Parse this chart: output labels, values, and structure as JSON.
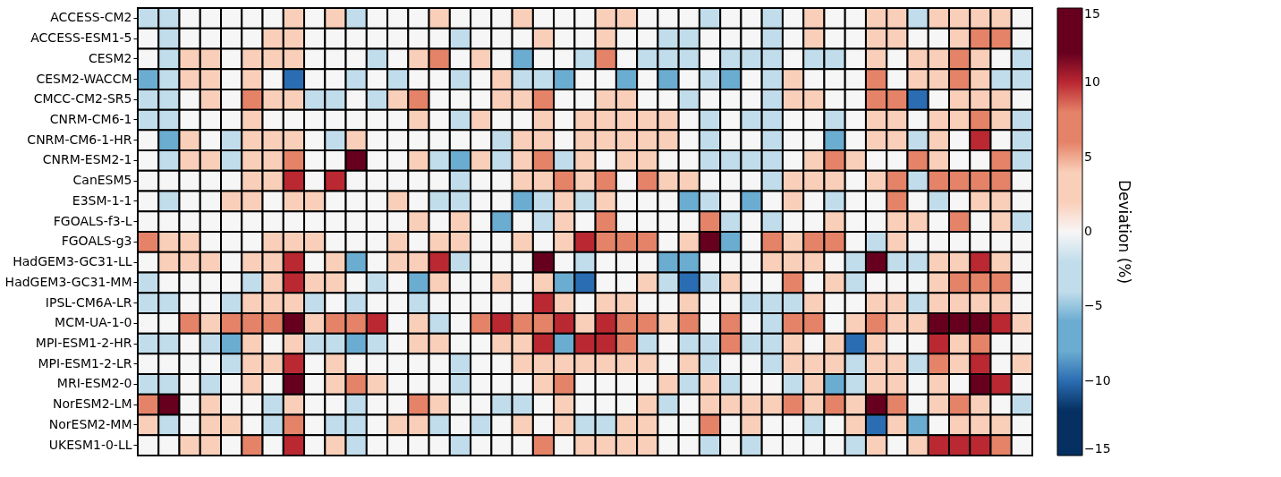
{
  "chart_data": {
    "type": "heatmap",
    "categories": [
      null,
      null,
      null,
      null,
      null,
      null,
      null,
      null,
      null,
      null,
      null,
      null,
      null,
      null,
      null,
      null,
      null,
      null,
      null,
      null,
      null,
      null,
      null,
      null,
      null,
      null,
      null,
      null,
      null,
      null,
      null,
      null,
      null,
      null,
      null,
      null,
      null,
      null,
      null,
      null,
      null,
      null,
      null
    ],
    "y_categories": [
      "ACCESS-CM2",
      "ACCESS-ESM1-5",
      "CESM2",
      "CESM2-WACCM",
      "CMCC-CM2-SR5",
      "CNRM-CM6-1",
      "CNRM-CM6-1-HR",
      "CNRM-ESM2-1",
      "CanESM5",
      "E3SM-1-1",
      "FGOALS-f3-L",
      "FGOALS-g3",
      "HadGEM3-GC31-LL",
      "HadGEM3-GC31-MM",
      "IPSL-CM6A-LR",
      "MCM-UA-1-0",
      "MPI-ESM1-2-HR",
      "MPI-ESM1-2-LR",
      "MRI-ESM2-0",
      "NorESM2-LM",
      "NorESM2-MM",
      "UKESM1-0-LL"
    ],
    "cells": [
      [
        -3,
        -3,
        0,
        0,
        0,
        0,
        0,
        3,
        0,
        3,
        -3,
        0,
        0,
        0,
        3,
        0,
        0,
        0,
        3,
        0,
        0,
        0,
        3,
        3,
        0,
        0,
        0,
        -3,
        0,
        0,
        -3,
        0,
        3,
        0,
        0,
        3,
        3,
        -3,
        3,
        3,
        3,
        3,
        0
      ],
      [
        0,
        -3,
        0,
        0,
        0,
        0,
        3,
        3,
        0,
        0,
        0,
        0,
        0,
        0,
        0,
        -3,
        0,
        0,
        0,
        3,
        0,
        0,
        3,
        0,
        0,
        -3,
        -3,
        0,
        0,
        0,
        -3,
        0,
        3,
        0,
        0,
        3,
        3,
        0,
        0,
        3,
        7,
        7,
        0
      ],
      [
        0,
        -3,
        3,
        3,
        0,
        3,
        3,
        3,
        0,
        0,
        0,
        -3,
        0,
        3,
        7,
        0,
        3,
        0,
        -7,
        0,
        0,
        -3,
        7,
        0,
        -3,
        -3,
        -3,
        0,
        -3,
        -3,
        -3,
        0,
        -3,
        -3,
        0,
        3,
        0,
        3,
        3,
        7,
        3,
        0,
        -3
      ],
      [
        -7,
        -3,
        3,
        3,
        0,
        3,
        0,
        -10,
        0,
        0,
        -3,
        0,
        -3,
        0,
        0,
        -3,
        0,
        3,
        -3,
        -3,
        -7,
        0,
        0,
        -7,
        0,
        -7,
        0,
        -3,
        -7,
        0,
        -3,
        3,
        0,
        0,
        0,
        7,
        0,
        3,
        3,
        7,
        3,
        -3,
        -3
      ],
      [
        -3,
        -3,
        0,
        3,
        0,
        7,
        3,
        3,
        -3,
        -3,
        0,
        -3,
        3,
        7,
        0,
        0,
        0,
        3,
        3,
        7,
        0,
        0,
        3,
        3,
        0,
        0,
        -3,
        0,
        0,
        0,
        -3,
        3,
        3,
        0,
        0,
        7,
        7,
        -10,
        0,
        3,
        3,
        3,
        0
      ],
      [
        -3,
        -3,
        0,
        0,
        0,
        3,
        0,
        0,
        0,
        0,
        0,
        0,
        0,
        3,
        0,
        -3,
        3,
        0,
        0,
        3,
        0,
        3,
        3,
        3,
        3,
        3,
        0,
        -3,
        0,
        -3,
        -3,
        0,
        0,
        -3,
        0,
        3,
        3,
        0,
        3,
        3,
        7,
        3,
        -3
      ],
      [
        0,
        -7,
        3,
        0,
        -3,
        3,
        3,
        3,
        0,
        -3,
        3,
        0,
        0,
        0,
        0,
        0,
        0,
        -3,
        3,
        3,
        0,
        3,
        3,
        3,
        3,
        3,
        0,
        -3,
        0,
        0,
        -3,
        0,
        0,
        -7,
        0,
        3,
        3,
        -3,
        3,
        0,
        10,
        0,
        -3
      ],
      [
        0,
        -3,
        3,
        3,
        -3,
        3,
        3,
        7,
        0,
        0,
        13,
        0,
        0,
        3,
        -3,
        -7,
        3,
        -3,
        3,
        7,
        -3,
        3,
        0,
        3,
        3,
        0,
        0,
        -3,
        -3,
        -3,
        -3,
        0,
        3,
        7,
        3,
        0,
        0,
        7,
        3,
        0,
        0,
        7,
        -3
      ],
      [
        0,
        0,
        0,
        0,
        0,
        3,
        3,
        10,
        0,
        10,
        0,
        0,
        0,
        0,
        0,
        -3,
        0,
        0,
        3,
        3,
        7,
        3,
        7,
        0,
        7,
        3,
        3,
        0,
        0,
        0,
        -3,
        3,
        3,
        3,
        0,
        3,
        7,
        -3,
        7,
        7,
        7,
        7,
        0
      ],
      [
        0,
        -3,
        0,
        0,
        3,
        3,
        0,
        3,
        3,
        0,
        0,
        0,
        3,
        0,
        -3,
        -3,
        0,
        0,
        -7,
        -3,
        3,
        -3,
        3,
        0,
        0,
        0,
        -7,
        -3,
        0,
        -7,
        0,
        3,
        0,
        -3,
        0,
        0,
        7,
        0,
        -3,
        0,
        3,
        3,
        0
      ],
      [
        0,
        0,
        0,
        0,
        0,
        0,
        0,
        0,
        0,
        0,
        0,
        0,
        0,
        3,
        0,
        3,
        0,
        -7,
        0,
        -3,
        3,
        0,
        7,
        0,
        0,
        0,
        0,
        7,
        -3,
        0,
        -3,
        0,
        0,
        3,
        0,
        0,
        3,
        3,
        0,
        7,
        0,
        3,
        -3
      ],
      [
        7,
        3,
        3,
        0,
        0,
        0,
        3,
        3,
        3,
        0,
        0,
        0,
        3,
        0,
        3,
        3,
        0,
        0,
        3,
        0,
        3,
        10,
        7,
        7,
        7,
        0,
        3,
        13,
        -7,
        0,
        7,
        3,
        7,
        7,
        0,
        -3,
        3,
        0,
        0,
        0,
        0,
        0,
        0
      ],
      [
        0,
        3,
        3,
        3,
        0,
        3,
        3,
        10,
        0,
        3,
        -7,
        0,
        3,
        3,
        10,
        -3,
        0,
        0,
        0,
        13,
        0,
        -3,
        0,
        0,
        0,
        -7,
        -7,
        0,
        0,
        0,
        3,
        3,
        3,
        0,
        -3,
        13,
        -3,
        -3,
        3,
        3,
        10,
        3,
        0
      ],
      [
        -3,
        0,
        0,
        0,
        0,
        -3,
        3,
        10,
        3,
        3,
        0,
        -3,
        0,
        -7,
        3,
        0,
        0,
        3,
        0,
        3,
        -7,
        -10,
        0,
        0,
        3,
        -3,
        -10,
        -3,
        3,
        0,
        0,
        7,
        0,
        3,
        -3,
        0,
        0,
        0,
        3,
        7,
        7,
        7,
        0
      ],
      [
        -3,
        -3,
        0,
        0,
        -3,
        3,
        3,
        3,
        -3,
        0,
        -3,
        0,
        0,
        -3,
        0,
        0,
        0,
        0,
        0,
        10,
        3,
        0,
        3,
        3,
        0,
        0,
        3,
        0,
        0,
        -3,
        -3,
        -3,
        3,
        0,
        0,
        3,
        3,
        -3,
        3,
        3,
        3,
        3,
        0
      ],
      [
        0,
        0,
        7,
        3,
        7,
        7,
        7,
        13,
        3,
        7,
        7,
        10,
        0,
        3,
        -3,
        0,
        7,
        10,
        7,
        7,
        10,
        3,
        10,
        7,
        7,
        3,
        7,
        0,
        7,
        0,
        -3,
        7,
        7,
        0,
        3,
        7,
        3,
        3,
        13,
        13,
        13,
        10,
        3
      ],
      [
        -3,
        -3,
        0,
        -3,
        -7,
        3,
        0,
        3,
        -3,
        -3,
        -7,
        -3,
        0,
        3,
        3,
        0,
        0,
        3,
        3,
        10,
        -7,
        10,
        10,
        7,
        -3,
        0,
        -3,
        -3,
        7,
        -3,
        -3,
        3,
        0,
        3,
        -10,
        3,
        0,
        0,
        10,
        3,
        7,
        0,
        0
      ],
      [
        0,
        0,
        0,
        0,
        -3,
        3,
        3,
        10,
        0,
        3,
        0,
        0,
        0,
        0,
        0,
        -3,
        0,
        0,
        3,
        3,
        3,
        3,
        3,
        3,
        3,
        0,
        3,
        -3,
        0,
        0,
        -3,
        3,
        3,
        3,
        -3,
        3,
        3,
        -3,
        7,
        3,
        10,
        0,
        3
      ],
      [
        -3,
        -3,
        0,
        -3,
        0,
        3,
        0,
        13,
        0,
        3,
        7,
        3,
        0,
        0,
        0,
        -3,
        0,
        0,
        0,
        3,
        7,
        0,
        0,
        0,
        0,
        3,
        -3,
        3,
        -3,
        0,
        0,
        -3,
        3,
        -7,
        -3,
        3,
        3,
        0,
        3,
        0,
        13,
        10,
        0
      ],
      [
        7,
        13,
        0,
        3,
        0,
        0,
        -3,
        3,
        0,
        0,
        -3,
        0,
        0,
        7,
        3,
        0,
        0,
        -3,
        -3,
        0,
        3,
        0,
        0,
        0,
        3,
        -3,
        0,
        3,
        3,
        3,
        3,
        7,
        3,
        7,
        3,
        13,
        7,
        0,
        3,
        7,
        3,
        0,
        -3
      ],
      [
        3,
        -3,
        0,
        3,
        3,
        0,
        -3,
        7,
        0,
        -3,
        -3,
        0,
        3,
        3,
        -3,
        0,
        -3,
        0,
        3,
        0,
        3,
        -3,
        -3,
        3,
        3,
        0,
        0,
        7,
        0,
        3,
        0,
        0,
        -3,
        0,
        3,
        -10,
        3,
        -7,
        0,
        3,
        3,
        3,
        0
      ],
      [
        0,
        0,
        3,
        3,
        0,
        7,
        0,
        10,
        0,
        3,
        -3,
        0,
        0,
        0,
        0,
        -3,
        0,
        0,
        0,
        7,
        0,
        3,
        3,
        3,
        3,
        0,
        0,
        -3,
        0,
        -3,
        0,
        0,
        0,
        0,
        -3,
        3,
        0,
        3,
        10,
        10,
        10,
        7,
        0
      ]
    ],
    "colors": [
      "#053061",
      "#2b6db2",
      "#6bacd1",
      "#c1ddeb",
      "#f7f6f6",
      "#facfb9",
      "#e58368",
      "#ba2832",
      "#67001f"
    ],
    "clim": [
      -15,
      15
    ],
    "cticks": [
      -15,
      -10,
      -5,
      0,
      5,
      10,
      15
    ],
    "clabel": "Deviation (%)",
    "tick_labels": "y"
  }
}
